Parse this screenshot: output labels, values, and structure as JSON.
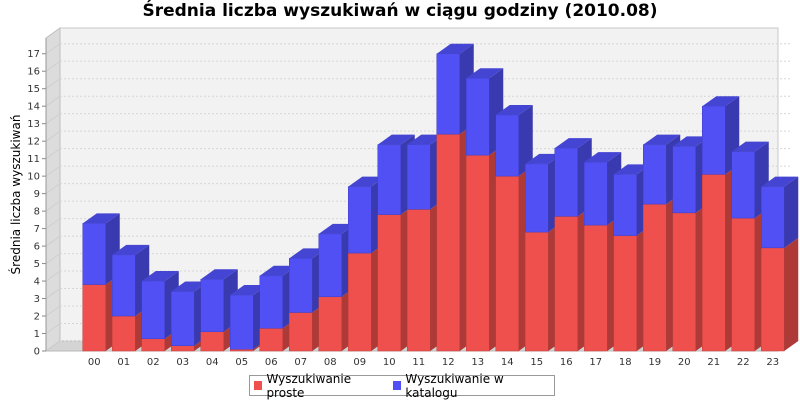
{
  "chart_data": {
    "type": "bar",
    "stacked": true,
    "three_d": true,
    "title": "Średnia liczba wyszukiwań w ciągu godziny (2010.08)",
    "xlabel": "",
    "ylabel": "Średnia liczba wyszukiwań",
    "ylim": [
      0,
      17.9
    ],
    "yticks": [
      0,
      1,
      2,
      3,
      4,
      5,
      6,
      7,
      8,
      9,
      10,
      11,
      12,
      13,
      14,
      15,
      16,
      17
    ],
    "grid": true,
    "legend_position": "bottom",
    "categories": [
      "00",
      "01",
      "02",
      "03",
      "04",
      "05",
      "06",
      "07",
      "08",
      "09",
      "10",
      "11",
      "12",
      "13",
      "14",
      "15",
      "16",
      "17",
      "18",
      "19",
      "20",
      "21",
      "22",
      "23"
    ],
    "series": [
      {
        "name": "Wyszukiwanie proste",
        "color": "#f0504d",
        "values": [
          3.8,
          2.0,
          0.7,
          0.3,
          1.1,
          0.1,
          1.3,
          2.2,
          3.1,
          5.6,
          7.8,
          8.1,
          12.4,
          11.2,
          10.0,
          6.8,
          7.7,
          7.2,
          6.6,
          8.4,
          7.9,
          10.1,
          7.6,
          5.9
        ]
      },
      {
        "name": "Wyszukiwanie w katalogu",
        "color": "#5050f5",
        "values": [
          3.5,
          3.5,
          3.3,
          3.1,
          3.0,
          3.1,
          3.0,
          3.1,
          3.6,
          3.8,
          4.0,
          3.7,
          4.6,
          4.4,
          3.5,
          3.9,
          3.9,
          3.6,
          3.5,
          3.4,
          3.8,
          3.9,
          3.8,
          3.5
        ]
      }
    ]
  }
}
